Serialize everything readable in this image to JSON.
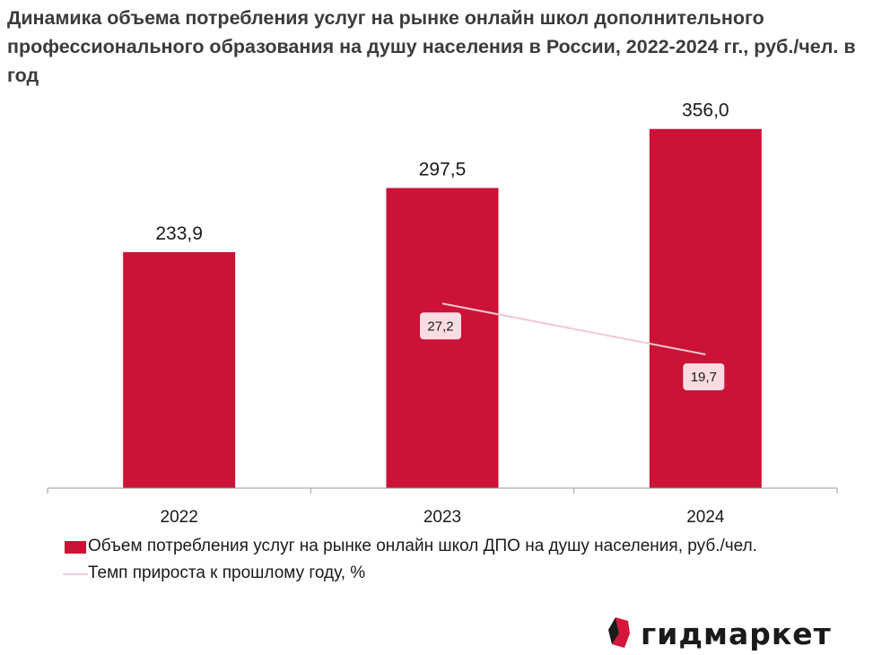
{
  "title": "Динамика объема потребления услуг на рынке онлайн школ дополнительного профессионального образования на душу населения в России, 2022-2024 гг., руб./чел. в год",
  "colors": {
    "bar": "#cc1236",
    "line": "#f4c7d0",
    "label_bg": "#f9dce2"
  },
  "chart_data": {
    "type": "bar",
    "categories": [
      "2022",
      "2023",
      "2024"
    ],
    "series": [
      {
        "name": "Объем потребления услуг на рынке онлайн школ ДПО на душу населения, руб./чел.",
        "type": "bar",
        "values": [
          233.9,
          297.5,
          356.0
        ],
        "labels": [
          "233,9",
          "297,5",
          "356,0"
        ]
      },
      {
        "name": "Темп прироста к прошлому году, %",
        "type": "line",
        "x": [
          "2023",
          "2024"
        ],
        "values": [
          27.2,
          19.7
        ],
        "labels": [
          "27,2",
          "19,7"
        ]
      }
    ],
    "ylim": [
      0,
      370
    ],
    "growth_ylim": [
      0,
      55
    ],
    "grid": false,
    "legend_position": "bottom"
  },
  "legend": {
    "bar_label": "Объем потребления услуг на рынке онлайн школ ДПО на душу населения, руб./чел.",
    "line_label": "Темп прироста к прошлому году, %"
  },
  "logo": {
    "text": "гидмаркет",
    "icon": "gidmarket-logo-icon"
  }
}
